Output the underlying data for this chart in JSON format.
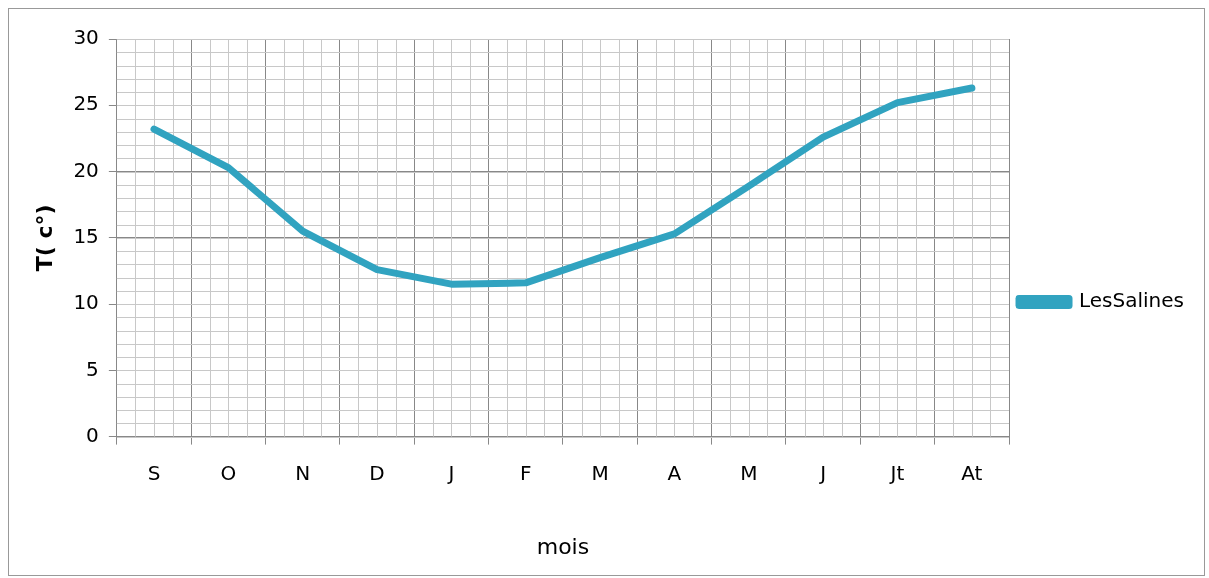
{
  "chart_data": {
    "type": "line",
    "xlabel": "mois",
    "ylabel": "T( c°)",
    "categories": [
      "S",
      "O",
      "N",
      "D",
      "J",
      "F",
      "M",
      "A",
      "M",
      "J",
      "Jt",
      "At"
    ],
    "series": [
      {
        "name": "LesSalines",
        "color": "#31a3c0",
        "values": [
          23.2,
          20.3,
          15.5,
          12.6,
          11.5,
          11.6,
          13.5,
          15.3,
          18.9,
          22.6,
          25.2,
          26.3
        ]
      }
    ],
    "ylim": [
      0,
      30
    ],
    "yticks": [
      0,
      5,
      10,
      15,
      20,
      25,
      30
    ],
    "grid": true,
    "legend": "right",
    "marker": "none",
    "line_style": "solid"
  }
}
